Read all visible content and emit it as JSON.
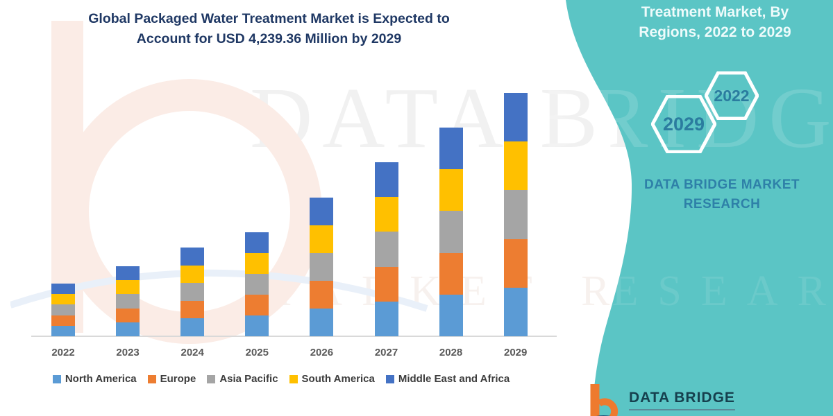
{
  "header": {
    "title_line1": "Global Packaged Water Treatment Market is Expected to",
    "title_line2": "Account for USD 4,239.36 Million by 2029"
  },
  "side_panel": {
    "title_lines": [
      "Treatment Market, By",
      "Regions, 2022 to 2029"
    ],
    "hexagons": [
      {
        "label": "2029"
      },
      {
        "label": "2022"
      }
    ],
    "brand_line1": "DATA BRIDGE MARKET",
    "brand_line2": "RESEARCH",
    "footer_logo_text": "DATA BRIDGE",
    "colors": {
      "panel_teal": "#5bc5c5",
      "heading_text": "#eefbfb",
      "hexagon_year_text": "#2b7c9f",
      "brand_text": "#2e80a8",
      "logo_orange": "#ee7a2e",
      "logo_dark": "#16404e"
    }
  },
  "watermark": {
    "line1": "DATA BRIDGE",
    "line2": "MARKET RESEARCH"
  },
  "chart_data": {
    "type": "bar",
    "stacked": true,
    "title": "Global Packaged Water Treatment Market is Expected to Account for USD 4,239.36 Million by 2029",
    "units": "USD Million",
    "annotation": "USD 4,239.36 Million by 2029",
    "categories": [
      "2022",
      "2023",
      "2024",
      "2025",
      "2026",
      "2027",
      "2028",
      "2029"
    ],
    "series": [
      {
        "name": "North America",
        "color": "#5B9BD5",
        "values": [
          183.7,
          244.1,
          309.2,
          362.4,
          483.1,
          606.3,
          727.2,
          847.9
        ]
      },
      {
        "name": "Europe",
        "color": "#ED7D31",
        "values": [
          183.7,
          244.1,
          309.2,
          362.4,
          483.1,
          606.3,
          727.2,
          847.9
        ]
      },
      {
        "name": "Asia Pacific",
        "color": "#A5A5A5",
        "values": [
          183.7,
          244.1,
          309.2,
          362.4,
          483.1,
          606.3,
          727.2,
          847.9
        ]
      },
      {
        "name": "South America",
        "color": "#FFC000",
        "values": [
          183.7,
          244.1,
          309.2,
          362.4,
          483.1,
          606.3,
          727.2,
          847.9
        ]
      },
      {
        "name": "Middle East and Africa",
        "color": "#4472C4",
        "values": [
          183.7,
          244.1,
          309.2,
          362.4,
          483.1,
          606.3,
          727.2,
          847.9
        ]
      }
    ],
    "totals": [
      918.5,
      1220.5,
      1546.0,
      1812.0,
      2415.5,
      3031.5,
      3636.0,
      4239.36
    ],
    "values_estimated_from_pixels": true,
    "xlabel": "",
    "ylabel": "",
    "ylim": [
      0,
      4500
    ],
    "grid": false,
    "y_axis_visible": false,
    "legend_position": "bottom",
    "title_color": "#1F3864",
    "axis_label_color": "#595959",
    "axis_line_color": "#d9d9d9"
  }
}
